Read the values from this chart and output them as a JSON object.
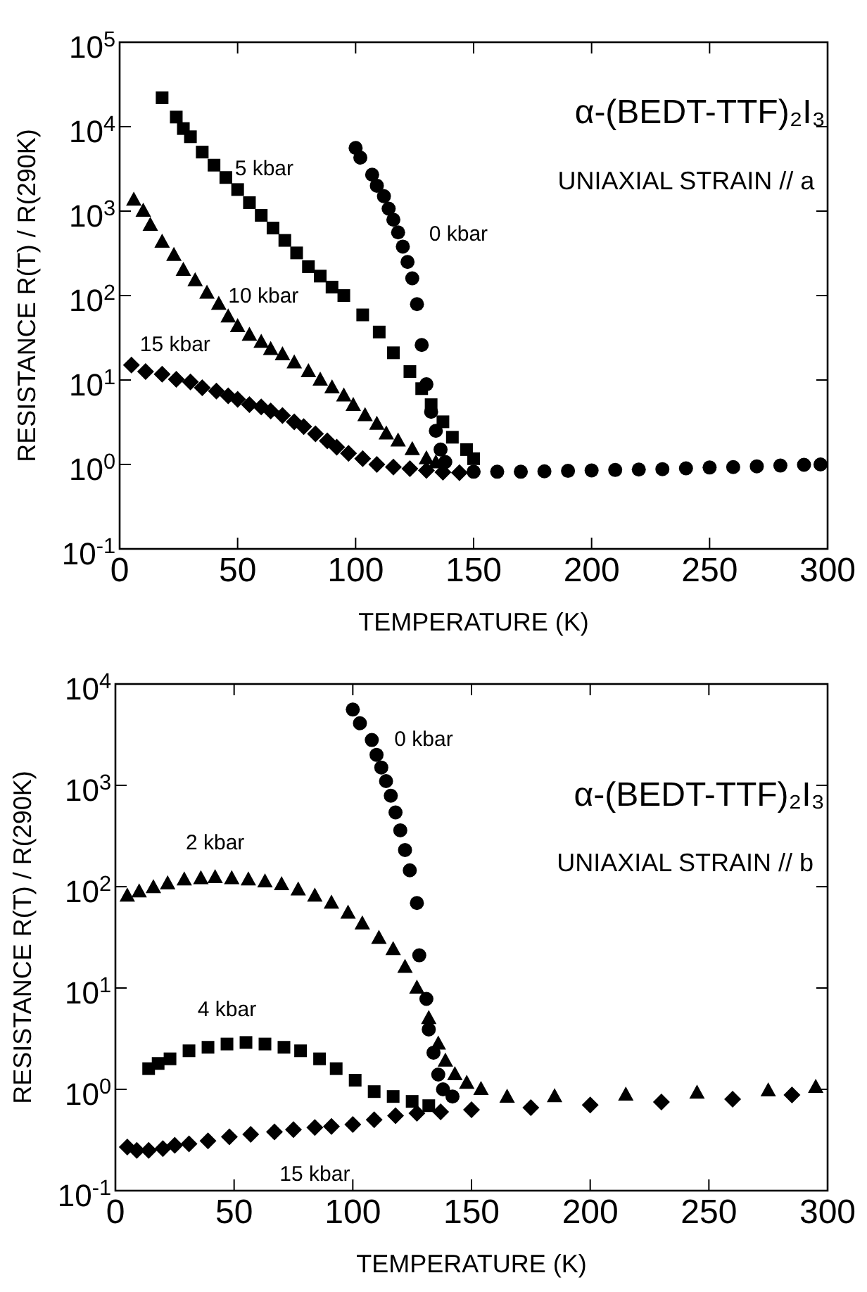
{
  "chart_data": [
    {
      "type": "scatter",
      "xlabel": "TEMPERATURE (K)",
      "ylabel": "RESISTANCE  R(T) / R(290K)",
      "log": "y",
      "xlim": [
        0,
        300
      ],
      "xticks": [
        0,
        50,
        100,
        150,
        200,
        250,
        300
      ],
      "ylim": [
        0.1,
        100000
      ],
      "yticks": [
        {
          "value": 0.1,
          "label": "10$^{-1}$"
        },
        {
          "value": 1,
          "label": "10$^{0}$"
        },
        {
          "value": 10,
          "label": "10$^{1}$"
        },
        {
          "value": 100,
          "label": "10$^{2}$"
        },
        {
          "value": 1000,
          "label": "10$^{3}$"
        },
        {
          "value": 10000,
          "label": "10$^{4}$"
        },
        {
          "value": 100000,
          "label": "10$^{5}$"
        }
      ],
      "annotations": [
        "α-(BEDT-TTF)₂I₃",
        "UNIAXIAL STRAIN // a"
      ],
      "series": [
        {
          "name": "0 kbar",
          "color": "#000000",
          "marker": "circle",
          "x": [
            100,
            102,
            107,
            109,
            112,
            114,
            116,
            118,
            120,
            122,
            124,
            126,
            128,
            130,
            132,
            134,
            136,
            138,
            150,
            160,
            170,
            180,
            190,
            200,
            210,
            220,
            230,
            240,
            250,
            260,
            270,
            280,
            290,
            297
          ],
          "values": [
            5600,
            4300,
            2700,
            2000,
            1500,
            1070,
            790,
            560,
            380,
            250,
            160,
            79,
            26,
            8.9,
            4.2,
            2.5,
            1.5,
            1.07,
            0.82,
            0.82,
            0.82,
            0.83,
            0.84,
            0.85,
            0.86,
            0.87,
            0.88,
            0.9,
            0.92,
            0.93,
            0.95,
            0.97,
            0.99,
            1.0
          ]
        },
        {
          "name": "5 kbar",
          "color": "#000000",
          "marker": "square",
          "x": [
            18,
            24,
            27,
            30,
            35,
            40,
            45,
            50,
            55,
            60,
            65,
            70,
            75,
            80,
            85,
            90,
            95,
            103,
            110,
            116,
            123,
            128,
            132,
            137,
            141,
            147,
            150
          ],
          "values": [
            22000,
            13000,
            9500,
            7600,
            5000,
            3500,
            2500,
            1800,
            1260,
            890,
            630,
            450,
            320,
            220,
            170,
            126,
            100,
            59,
            37,
            21,
            12.6,
            7.9,
            5.1,
            3.2,
            2.1,
            1.5,
            1.17
          ]
        },
        {
          "name": "10 kbar",
          "color": "#000000",
          "marker": "triangle",
          "x": [
            6,
            10,
            13,
            18,
            23,
            27,
            32,
            37,
            42,
            46,
            50,
            55,
            60,
            64,
            69,
            74,
            80,
            85,
            90,
            95,
            99,
            104,
            109,
            113,
            118,
            124,
            130,
            134
          ],
          "values": [
            1350,
            1000,
            680,
            430,
            300,
            200,
            150,
            107,
            79,
            56,
            43,
            34,
            28,
            23,
            20,
            16,
            12.6,
            10,
            8.1,
            6.5,
            5,
            3.8,
            3.0,
            2.3,
            1.9,
            1.5,
            1.17,
            1.05
          ]
        },
        {
          "name": "15 kbar",
          "color": "#000000",
          "marker": "diamond",
          "x": [
            5,
            11,
            18,
            24,
            30,
            35,
            41,
            46,
            50,
            55,
            60,
            64,
            69,
            74,
            78,
            83,
            88,
            92,
            97,
            103,
            109,
            116,
            123,
            130,
            137,
            144
          ],
          "values": [
            15,
            12.6,
            11.7,
            10.2,
            9.5,
            8.1,
            7.4,
            6.5,
            5.9,
            5.1,
            4.8,
            4.3,
            3.8,
            3.2,
            2.8,
            2.3,
            1.9,
            1.6,
            1.35,
            1.17,
            1.0,
            0.93,
            0.89,
            0.85,
            0.81,
            0.8
          ]
        }
      ]
    },
    {
      "type": "scatter",
      "xlabel": "TEMPERATURE (K)",
      "ylabel": "RESISTANCE  R(T) / R(290K)",
      "log": "y",
      "xlim": [
        0,
        300
      ],
      "xticks": [
        0,
        50,
        100,
        150,
        200,
        250,
        300
      ],
      "ylim": [
        0.1,
        10000
      ],
      "yticks": [
        {
          "value": 0.1,
          "label": "10$^{-1}$"
        },
        {
          "value": 1,
          "label": "10$^{0}$"
        },
        {
          "value": 10,
          "label": "10$^{1}$"
        },
        {
          "value": 100,
          "label": "10$^{2}$"
        },
        {
          "value": 1000,
          "label": "10$^{3}$"
        },
        {
          "value": 10000,
          "label": "10$^{4}$"
        }
      ],
      "annotations": [
        "α-(BEDT-TTF)₂I₃",
        "UNIAXIAL STRAIN // b"
      ],
      "series": [
        {
          "name": "0 kbar",
          "color": "#000000",
          "marker": "circle",
          "x": [
            100,
            103,
            108,
            110,
            112,
            114,
            116,
            118,
            120,
            122,
            124,
            127,
            128,
            131,
            132,
            134,
            136,
            138,
            142
          ],
          "values": [
            5600,
            4100,
            2800,
            2000,
            1500,
            1100,
            790,
            540,
            360,
            230,
            145,
            69,
            21,
            7.8,
            3.9,
            2.3,
            1.4,
            1.0,
            0.85
          ]
        },
        {
          "name": "2 kbar",
          "color": "#000000",
          "marker": "triangle",
          "x": [
            5,
            10,
            16,
            22,
            29,
            36,
            42,
            49,
            56,
            63,
            70,
            77,
            84,
            91,
            98,
            104,
            111,
            117,
            122,
            127,
            132,
            136,
            139,
            143,
            148,
            154,
            165,
            185,
            215,
            245,
            275,
            295
          ],
          "values": [
            81,
            89,
            98,
            107,
            117,
            120,
            123,
            120,
            117,
            112,
            105,
            93,
            81,
            69,
            55,
            43,
            31,
            24,
            16,
            10,
            5,
            2.8,
            1.9,
            1.4,
            1.15,
            1.0,
            0.84,
            0.85,
            0.88,
            0.92,
            0.97,
            1.05
          ]
        },
        {
          "name": "4 kbar",
          "color": "#000000",
          "marker": "square",
          "x": [
            14,
            18,
            23,
            31,
            39,
            47,
            55,
            63,
            71,
            78,
            86,
            93,
            101,
            109,
            117,
            125,
            132
          ],
          "values": [
            1.6,
            1.8,
            2.0,
            2.4,
            2.6,
            2.8,
            2.9,
            2.8,
            2.6,
            2.4,
            2.0,
            1.6,
            1.23,
            0.95,
            0.85,
            0.76,
            0.69
          ]
        },
        {
          "name": "15 kbar",
          "color": "#000000",
          "marker": "diamond",
          "x": [
            5,
            9,
            14,
            20,
            25,
            31,
            39,
            48,
            57,
            67,
            75,
            84,
            91,
            100,
            109,
            118,
            127,
            137,
            150,
            175,
            200,
            230,
            260,
            285
          ],
          "values": [
            0.27,
            0.25,
            0.25,
            0.26,
            0.28,
            0.29,
            0.31,
            0.34,
            0.36,
            0.38,
            0.4,
            0.42,
            0.43,
            0.45,
            0.5,
            0.55,
            0.58,
            0.6,
            0.63,
            0.66,
            0.7,
            0.75,
            0.8,
            0.88
          ]
        }
      ]
    }
  ]
}
